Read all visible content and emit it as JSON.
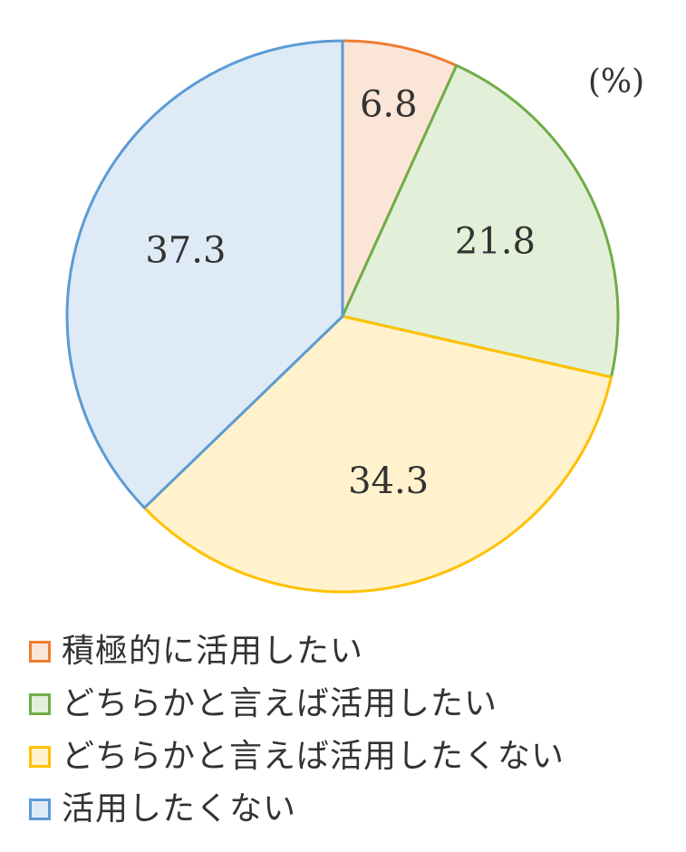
{
  "chart_data": {
    "type": "pie",
    "unit_label": "(%)",
    "start_angle_deg": 0,
    "direction": "clockwise",
    "slices": [
      {
        "label": "積極的に活用したい",
        "value": 6.8,
        "value_label": "6.8",
        "fill": "#fbe5d6",
        "stroke": "#ed7d31"
      },
      {
        "label": "どちらかと言えば活用したい",
        "value": 21.8,
        "value_label": "21.8",
        "fill": "#e2f0d9",
        "stroke": "#70ad47"
      },
      {
        "label": "どちらかと言えば活用したくない",
        "value": 34.3,
        "value_label": "34.3",
        "fill": "#fff2cc",
        "stroke": "#ffc000"
      },
      {
        "label": "活用したくない",
        "value": 37.3,
        "value_label": "37.3",
        "fill": "#deebf7",
        "stroke": "#5b9bd5"
      }
    ],
    "legend_position": "bottom"
  }
}
